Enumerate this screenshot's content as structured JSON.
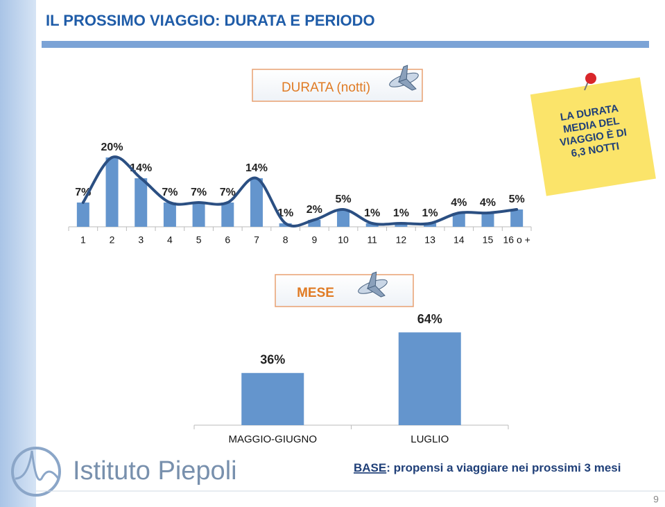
{
  "title": "IL PROSSIMO VIAGGIO: DURATA E PERIODO",
  "note": [
    "LA DURATA",
    "MEDIA DEL",
    "VIAGGIO È DI",
    "6,3 NOTTI"
  ],
  "logo": "Istituto Piepoli",
  "base": {
    "label": "BASE",
    "text": ": propensi a viaggiare nei prossimi 3 mesi"
  },
  "page_number": "9",
  "chart_data": [
    {
      "type": "bar",
      "title": "DURATA (notti)",
      "categories": [
        "1",
        "2",
        "3",
        "4",
        "5",
        "6",
        "7",
        "8",
        "9",
        "10",
        "11",
        "12",
        "13",
        "14",
        "15",
        "16 o +"
      ],
      "values": [
        7,
        20,
        14,
        7,
        7,
        7,
        14,
        1,
        2,
        5,
        1,
        1,
        1,
        4,
        4,
        5
      ],
      "value_labels": [
        "7%",
        "20%",
        "14%",
        "7%",
        "7%",
        "7%",
        "14%",
        "1%",
        "2%",
        "5%",
        "1%",
        "1%",
        "1%",
        "4%",
        "4%",
        "5%"
      ],
      "color": "#6495cd",
      "line_color": "#2b4f82"
    },
    {
      "type": "bar",
      "title": "MESE",
      "categories": [
        "MAGGIO-GIUGNO",
        "LUGLIO"
      ],
      "values": [
        36,
        64
      ],
      "value_labels": [
        "36%",
        "64%"
      ],
      "color": "#6495cd"
    }
  ]
}
